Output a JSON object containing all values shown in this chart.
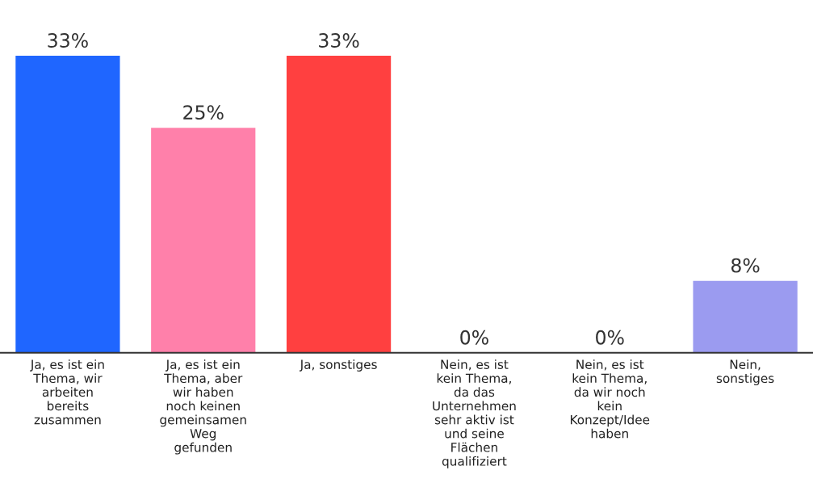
{
  "chart_data": {
    "type": "bar",
    "categories": [
      "Ja, es ist ein\nThema, wir\narbeiten\nbereits\nzusammen",
      "Ja, es ist ein\nThema, aber\nwir haben\nnoch keinen\ngemeinsamen\nWeg\ngefunden",
      "Ja, sonstiges",
      "Nein, es ist\nkein Thema,\nda das\nUnternehmen\nsehr aktiv ist\nund seine\nFlächen\nqualifiziert",
      "Nein, es ist\nkein Thema,\nda wir noch\nkein\nKonzept/Idee\nhaben",
      "Nein,\nsonstiges"
    ],
    "values": [
      33,
      25,
      33,
      0,
      0,
      8
    ],
    "colors": [
      "#1f66ff",
      "#ff80aa",
      "#ff4040",
      "#9b9bf0",
      "#9b9bf0",
      "#9b9bf0"
    ],
    "value_labels": [
      "33%",
      "25%",
      "33%",
      "0%",
      "0%",
      "8%"
    ],
    "tick_labels": "x",
    "grid": false,
    "legend": false
  }
}
